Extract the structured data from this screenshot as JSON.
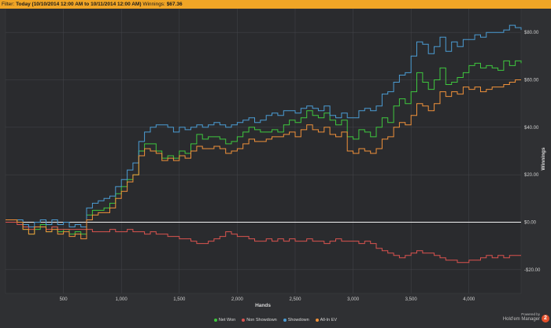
{
  "filter": {
    "label": "Filter:",
    "value": "Today (10/10/2014 12:00 AM to 10/11/2014 12:00 AM)",
    "winnings_label": "Winnings:",
    "winnings_value": "$67.36"
  },
  "branding": {
    "powered_by": "Powered by",
    "name": "Hold'em Manager",
    "logo_char": "2"
  },
  "chart_data": {
    "type": "line",
    "xlabel": "Hands",
    "ylabel": "Winnings",
    "xlim": [
      0,
      4450
    ],
    "ylim": [
      -30,
      90
    ],
    "x_ticks": [
      500,
      1000,
      1500,
      2000,
      2500,
      3000,
      3500,
      4000
    ],
    "x_tick_labels": [
      "500",
      "1,000",
      "1,500",
      "2,000",
      "2,500",
      "3,000",
      "3,500",
      "4,000"
    ],
    "y_ticks": [
      -20,
      0,
      20,
      40,
      60,
      80
    ],
    "y_tick_labels": [
      "-$20.00",
      "$0.00",
      "$20.00",
      "$40.00",
      "$60.00",
      "$80.00"
    ],
    "grid": true,
    "legend_position": "bottom",
    "zero_line": true,
    "series": [
      {
        "name": "Net Won",
        "color": "#3ec73e",
        "x": [
          0,
          100,
          150,
          200,
          250,
          300,
          350,
          400,
          450,
          500,
          550,
          600,
          650,
          700,
          750,
          800,
          850,
          900,
          950,
          1000,
          1050,
          1100,
          1150,
          1200,
          1250,
          1300,
          1350,
          1400,
          1450,
          1500,
          1550,
          1600,
          1650,
          1700,
          1750,
          1800,
          1850,
          1900,
          1950,
          2000,
          2050,
          2100,
          2150,
          2200,
          2250,
          2300,
          2350,
          2400,
          2450,
          2500,
          2550,
          2600,
          2650,
          2700,
          2750,
          2800,
          2850,
          2900,
          2950,
          3000,
          3050,
          3100,
          3150,
          3200,
          3250,
          3300,
          3350,
          3400,
          3450,
          3500,
          3550,
          3600,
          3650,
          3700,
          3750,
          3800,
          3850,
          3900,
          3950,
          4000,
          4050,
          4100,
          4150,
          4200,
          4250,
          4300,
          4350,
          4400,
          4450
        ],
        "y": [
          1,
          0,
          -3,
          -5,
          -3,
          -1,
          -4,
          -2,
          -4,
          -3,
          -5,
          -4,
          -5,
          3,
          5,
          5,
          6,
          8,
          12,
          15,
          18,
          20,
          30,
          33,
          33,
          30,
          27,
          28,
          27,
          30,
          29,
          33,
          37,
          35,
          36,
          36,
          35,
          33,
          34,
          36,
          38,
          40,
          39,
          38,
          38,
          39,
          38,
          41,
          43,
          42,
          44,
          47,
          45,
          44,
          46,
          43,
          41,
          43,
          36,
          35,
          39,
          38,
          36,
          40,
          44,
          42,
          49,
          52,
          50,
          55,
          63,
          59,
          56,
          60,
          65,
          58,
          59,
          61,
          63,
          66,
          67,
          65,
          66,
          65,
          64,
          68,
          66,
          68,
          67
        ]
      },
      {
        "name": "Non Showdown",
        "color": "#d9534f",
        "x": [
          0,
          100,
          150,
          200,
          250,
          300,
          350,
          400,
          450,
          500,
          550,
          600,
          650,
          700,
          750,
          800,
          850,
          900,
          950,
          1000,
          1050,
          1100,
          1150,
          1200,
          1250,
          1300,
          1350,
          1400,
          1450,
          1500,
          1550,
          1600,
          1650,
          1700,
          1750,
          1800,
          1850,
          1900,
          1950,
          2000,
          2050,
          2100,
          2150,
          2200,
          2250,
          2300,
          2350,
          2400,
          2450,
          2500,
          2550,
          2600,
          2650,
          2700,
          2750,
          2800,
          2850,
          2900,
          2950,
          3000,
          3050,
          3100,
          3150,
          3200,
          3250,
          3300,
          3350,
          3400,
          3450,
          3500,
          3550,
          3600,
          3650,
          3700,
          3750,
          3800,
          3850,
          3900,
          3950,
          4000,
          4050,
          4100,
          4150,
          4200,
          4250,
          4300,
          4350,
          4400,
          4450
        ],
        "y": [
          0,
          -1,
          -2,
          -3,
          -2,
          -2,
          -3,
          -2,
          -3,
          -3,
          -3,
          -3,
          -3,
          -3,
          -4,
          -4,
          -4,
          -3,
          -4,
          -4,
          -3,
          -4,
          -4,
          -5,
          -4,
          -5,
          -5,
          -6,
          -6,
          -7,
          -7,
          -8,
          -9,
          -9,
          -8,
          -7,
          -6,
          -4,
          -5,
          -6,
          -6,
          -7,
          -8,
          -8,
          -7,
          -8,
          -7,
          -8,
          -7,
          -8,
          -8,
          -7,
          -8,
          -8,
          -9,
          -8,
          -7,
          -8,
          -8,
          -8,
          -9,
          -8,
          -9,
          -11,
          -12,
          -13,
          -14,
          -15,
          -14,
          -13,
          -12,
          -13,
          -13,
          -14,
          -15,
          -16,
          -16,
          -17,
          -17,
          -16,
          -16,
          -15,
          -14,
          -15,
          -14,
          -15,
          -14,
          -14,
          -14
        ]
      },
      {
        "name": "Showdown",
        "color": "#4b9cd3",
        "x": [
          0,
          100,
          150,
          200,
          250,
          300,
          350,
          400,
          450,
          500,
          550,
          600,
          650,
          700,
          750,
          800,
          850,
          900,
          950,
          1000,
          1050,
          1100,
          1150,
          1200,
          1250,
          1300,
          1350,
          1400,
          1450,
          1500,
          1550,
          1600,
          1650,
          1700,
          1750,
          1800,
          1850,
          1900,
          1950,
          2000,
          2050,
          2100,
          2150,
          2200,
          2250,
          2300,
          2350,
          2400,
          2450,
          2500,
          2550,
          2600,
          2650,
          2700,
          2750,
          2800,
          2850,
          2900,
          2950,
          3000,
          3050,
          3100,
          3150,
          3200,
          3250,
          3300,
          3350,
          3400,
          3450,
          3500,
          3550,
          3600,
          3650,
          3700,
          3750,
          3800,
          3850,
          3900,
          3950,
          4000,
          4050,
          4100,
          4150,
          4200,
          4250,
          4300,
          4350,
          4400,
          4450
        ],
        "y": [
          1,
          1,
          -1,
          -2,
          0,
          1,
          -1,
          1,
          -1,
          0,
          -2,
          -1,
          -2,
          6,
          8,
          9,
          10,
          11,
          15,
          18,
          22,
          25,
          34,
          38,
          40,
          41,
          41,
          40,
          38,
          40,
          39,
          40,
          41,
          40,
          41,
          42,
          41,
          40,
          41,
          42,
          43,
          44,
          42,
          43,
          45,
          46,
          45,
          47,
          47,
          46,
          48,
          49,
          48,
          47,
          49,
          45,
          44,
          46,
          44,
          44,
          47,
          48,
          47,
          49,
          54,
          55,
          59,
          62,
          63,
          70,
          76,
          75,
          71,
          74,
          78,
          72,
          76,
          74,
          77,
          77,
          79,
          78,
          80,
          80,
          80,
          81,
          83,
          82,
          81
        ]
      },
      {
        "name": "All-In EV",
        "color": "#f0913a",
        "x": [
          0,
          100,
          150,
          200,
          250,
          300,
          350,
          400,
          450,
          500,
          550,
          600,
          650,
          700,
          750,
          800,
          850,
          900,
          950,
          1000,
          1050,
          1100,
          1150,
          1200,
          1250,
          1300,
          1350,
          1400,
          1450,
          1500,
          1550,
          1600,
          1650,
          1700,
          1750,
          1800,
          1850,
          1900,
          1950,
          2000,
          2050,
          2100,
          2150,
          2200,
          2250,
          2300,
          2350,
          2400,
          2450,
          2500,
          2550,
          2600,
          2650,
          2700,
          2750,
          2800,
          2850,
          2900,
          2950,
          3000,
          3050,
          3100,
          3150,
          3200,
          3250,
          3300,
          3350,
          3400,
          3450,
          3500,
          3550,
          3600,
          3650,
          3700,
          3750,
          3800,
          3850,
          3900,
          3950,
          4000,
          4050,
          4100,
          4150,
          4200,
          4250,
          4300,
          4350,
          4400,
          4450
        ],
        "y": [
          1,
          0,
          -3,
          -5,
          -2,
          -2,
          -4,
          -3,
          -5,
          -4,
          -6,
          -5,
          -7,
          1,
          3,
          4,
          4,
          6,
          10,
          13,
          17,
          20,
          28,
          31,
          30,
          29,
          26,
          27,
          26,
          28,
          27,
          30,
          32,
          31,
          31,
          32,
          31,
          29,
          30,
          31,
          33,
          35,
          34,
          34,
          35,
          36,
          36,
          37,
          38,
          36,
          39,
          41,
          39,
          38,
          40,
          37,
          36,
          38,
          30,
          29,
          31,
          30,
          29,
          31,
          35,
          36,
          40,
          42,
          41,
          45,
          50,
          49,
          47,
          50,
          55,
          53,
          55,
          54,
          57,
          56,
          57,
          55,
          56,
          57,
          57,
          58,
          59,
          60,
          60
        ]
      }
    ]
  }
}
